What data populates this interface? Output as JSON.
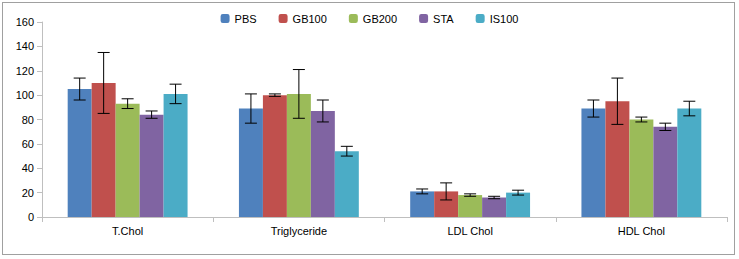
{
  "chart_data": {
    "type": "bar",
    "categories": [
      "T.Chol",
      "Triglyceride",
      "LDL Chol",
      "HDL Chol"
    ],
    "series": [
      {
        "name": "PBS",
        "color": "#4f81bd",
        "values": [
          105,
          89,
          21,
          89
        ],
        "errors": [
          9,
          12,
          2,
          7
        ]
      },
      {
        "name": "GB100",
        "color": "#c0504d",
        "values": [
          110,
          100,
          21,
          95
        ],
        "errors": [
          25,
          1,
          7,
          19
        ]
      },
      {
        "name": "GB200",
        "color": "#9bbb59",
        "values": [
          93,
          101,
          18,
          80
        ],
        "errors": [
          4,
          20,
          1,
          2
        ]
      },
      {
        "name": "STA",
        "color": "#8064a2",
        "values": [
          84,
          87,
          16,
          74
        ],
        "errors": [
          3,
          9,
          1,
          3
        ]
      },
      {
        "name": "IS100",
        "color": "#4bacc6",
        "values": [
          101,
          54,
          20,
          89
        ],
        "errors": [
          8,
          4,
          2,
          6
        ]
      }
    ],
    "ylim": [
      0,
      160
    ],
    "yticks": [
      0,
      20,
      40,
      60,
      80,
      100,
      120,
      140,
      160
    ],
    "grid": false,
    "legend": "top"
  }
}
